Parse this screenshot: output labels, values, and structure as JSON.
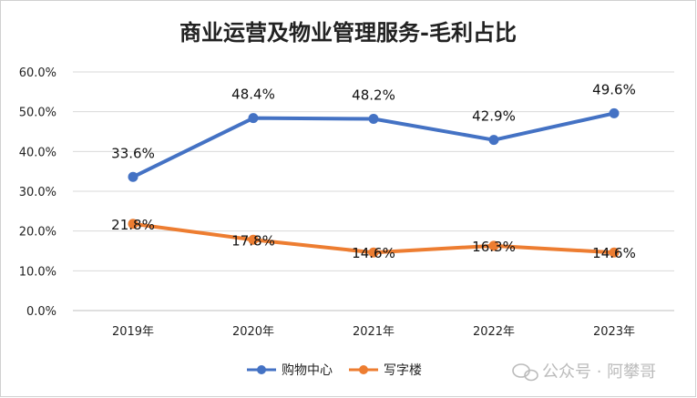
{
  "chart_data": {
    "type": "line",
    "title": "商业运营及物业管理服务-毛利占比",
    "categories": [
      "2019年",
      "2020年",
      "2021年",
      "2022年",
      "2023年"
    ],
    "y_ticks": [
      "0.0%",
      "10.0%",
      "20.0%",
      "30.0%",
      "40.0%",
      "50.0%",
      "60.0%"
    ],
    "ylim": [
      0,
      60
    ],
    "grid": true,
    "legend_position": "bottom",
    "series": [
      {
        "name": "购物中心",
        "color": "#4472C4",
        "values": [
          33.6,
          48.4,
          48.2,
          42.9,
          49.6
        ],
        "labels": [
          "33.6%",
          "48.4%",
          "48.2%",
          "42.9%",
          "49.6%"
        ]
      },
      {
        "name": "写字楼",
        "color": "#ED7D31",
        "values": [
          21.8,
          17.8,
          14.6,
          16.3,
          14.6
        ],
        "labels": [
          "21.8%",
          "17.8%",
          "14.6%",
          "16.3%",
          "14.6%"
        ]
      }
    ]
  },
  "watermark": {
    "text": "公众号 · 阿攀哥",
    "icon": "wechat-icon"
  }
}
